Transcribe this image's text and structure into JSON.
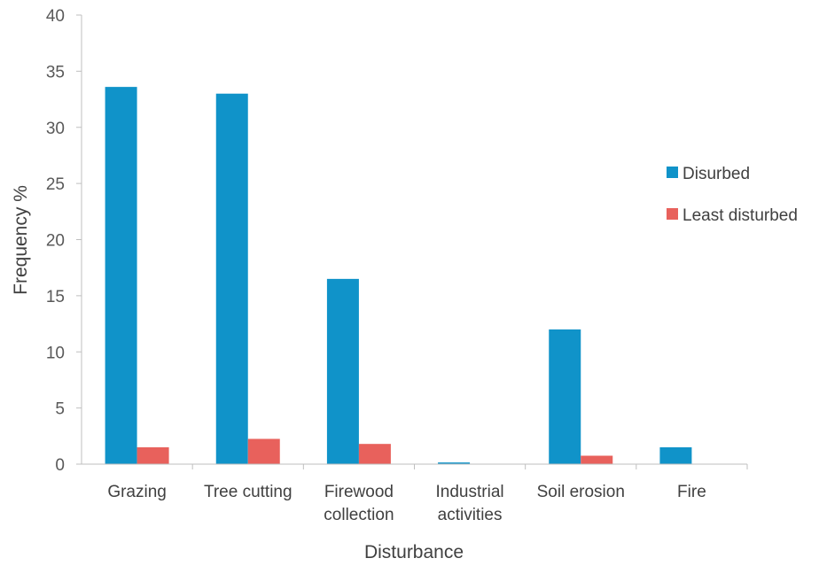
{
  "chart_data": {
    "type": "bar",
    "title": "",
    "xlabel": "Disturbance",
    "ylabel": "Frequency %",
    "ylim": [
      0,
      40
    ],
    "yticks": [
      0,
      5,
      10,
      15,
      20,
      25,
      30,
      35,
      40
    ],
    "grid": false,
    "legend_position": "right",
    "categories": [
      [
        "Grazing"
      ],
      [
        "Tree cutting"
      ],
      [
        "Firewood",
        "collection"
      ],
      [
        "Industrial",
        "activities"
      ],
      [
        "Soil erosion"
      ],
      [
        "Fire"
      ]
    ],
    "series": [
      {
        "name": "Disurbed",
        "color": "#1093c9",
        "values": [
          33.6,
          33.0,
          16.5,
          0.15,
          12.0,
          1.5
        ]
      },
      {
        "name": "Least disturbed",
        "color": "#e8615c",
        "values": [
          1.5,
          2.25,
          1.8,
          0,
          0.75,
          0
        ]
      }
    ]
  }
}
